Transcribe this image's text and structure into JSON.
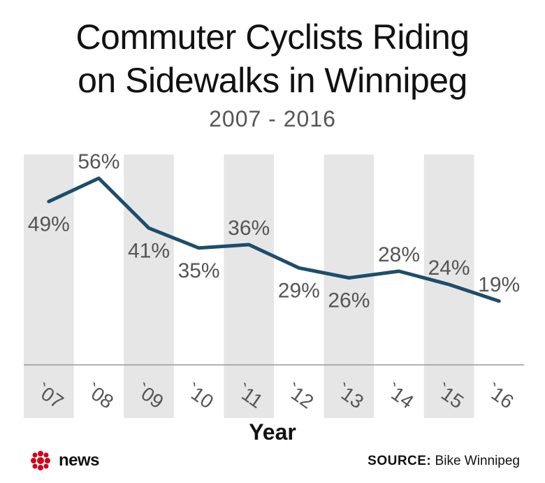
{
  "header": {
    "title_line1": "Commuter Cyclists Riding",
    "title_line2": "on Sidewalks in Winnipeg",
    "subtitle": "2007 - 2016"
  },
  "chart_data": {
    "type": "line",
    "title": "Commuter Cyclists Riding on Sidewalks in Winnipeg",
    "subtitle": "2007 - 2016",
    "xlabel": "Year",
    "ylabel": "",
    "categories": [
      "`07",
      "`08",
      "`09",
      "`10",
      "`11",
      "`12",
      "`13",
      "`14",
      "`15",
      "`16"
    ],
    "values": [
      49,
      56,
      41,
      35,
      36,
      29,
      26,
      28,
      24,
      19
    ],
    "value_labels": [
      "49%",
      "56%",
      "41%",
      "35%",
      "36%",
      "29%",
      "26%",
      "28%",
      "24%",
      "19%"
    ],
    "ylim": [
      0,
      100
    ],
    "grid": false,
    "alternating_bands": true,
    "colors": {
      "line": "#1e4d6b",
      "band": "#e6e6e6",
      "label": "#555555",
      "axis": "#999999"
    }
  },
  "footer": {
    "logo_text": "news",
    "source_label": "SOURCE:",
    "source_value": "Bike Winnipeg",
    "logo_color": "#d0021b"
  }
}
